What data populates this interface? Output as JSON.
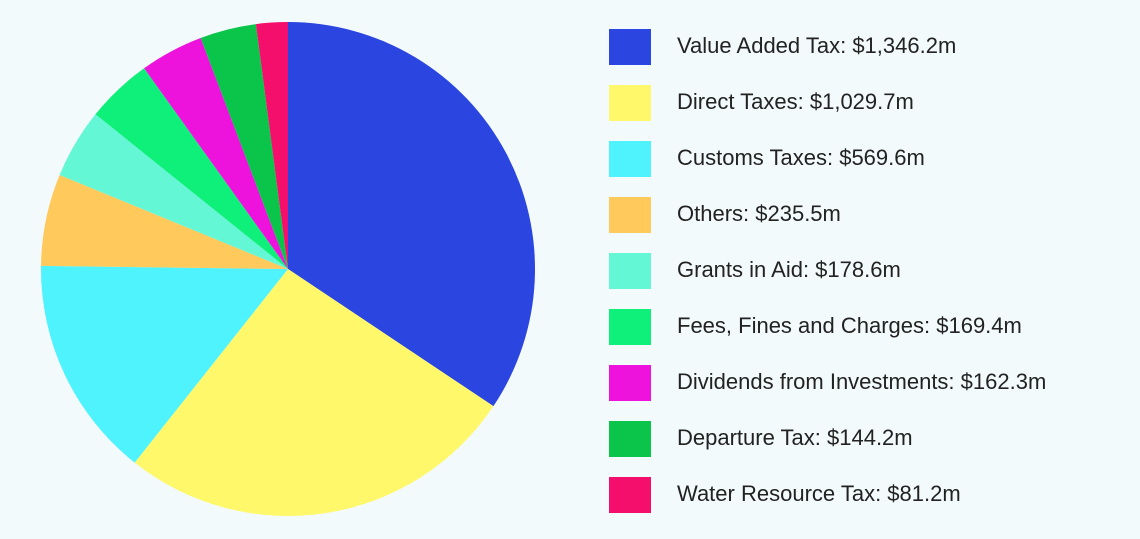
{
  "chart_data": {
    "type": "pie",
    "categories": [
      "Value Added Tax: $1,346.2m",
      "Direct Taxes: $1,029.7m",
      "Customs Taxes: $569.6m",
      "Others: $235.5m",
      "Grants in Aid: $178.6m",
      "Fees, Fines and Charges: $169.4m",
      "Dividends from Investments: $162.3m",
      "Departure Tax: $144.2m",
      "Water Resource Tax: $81.2m"
    ],
    "values": [
      1346.2,
      1029.7,
      569.6,
      235.5,
      178.6,
      169.4,
      162.3,
      144.2,
      81.2
    ],
    "colors": [
      "#2b45e0",
      "#fff86a",
      "#4ff3fd",
      "#ffc95c",
      "#63f7d6",
      "#0ff07a",
      "#ee12dd",
      "#0bc44a",
      "#f50f6c"
    ],
    "legend": "right"
  }
}
